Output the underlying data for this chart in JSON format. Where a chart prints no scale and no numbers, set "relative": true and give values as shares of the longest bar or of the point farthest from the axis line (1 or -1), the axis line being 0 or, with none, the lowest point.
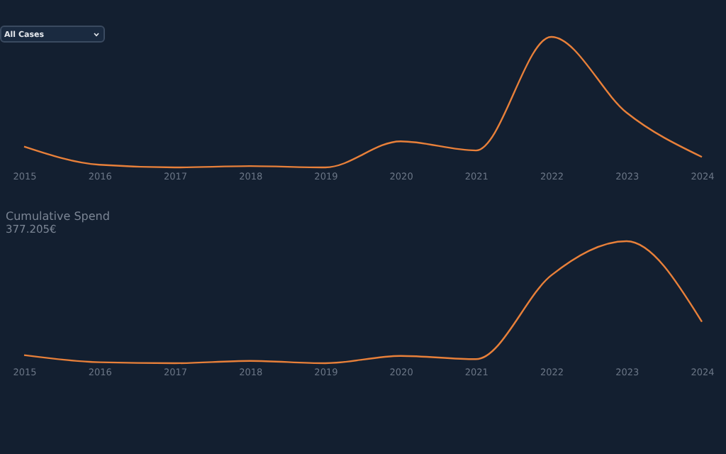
{
  "chart_data": [
    {
      "type": "line",
      "relative": true,
      "annotations": [
        "All Cases"
      ],
      "categories": [
        "2015",
        "2016",
        "2017",
        "2018",
        "2019",
        "2020",
        "2021",
        "2022",
        "2023",
        "2024"
      ],
      "series": [
        {
          "color": "#e8803a",
          "values": [
            0.16,
            0.02,
            0,
            0.01,
            0,
            0.2,
            0.13,
            1,
            0.42,
            0.08
          ]
        }
      ],
      "grid": false,
      "legend": false
    },
    {
      "type": "line",
      "relative": true,
      "title": "Cumulative Spend",
      "subtitle": "377.205€",
      "categories": [
        "2015",
        "2016",
        "2017",
        "2018",
        "2019",
        "2020",
        "2021",
        "2022",
        "2023",
        "2024"
      ],
      "series": [
        {
          "color": "#e8803a",
          "values": [
            0.066,
            0.008,
            0,
            0.019,
            0,
            0.06,
            0.033,
            0.72,
            1,
            0.34
          ]
        }
      ],
      "grid": false,
      "legend": false
    }
  ]
}
